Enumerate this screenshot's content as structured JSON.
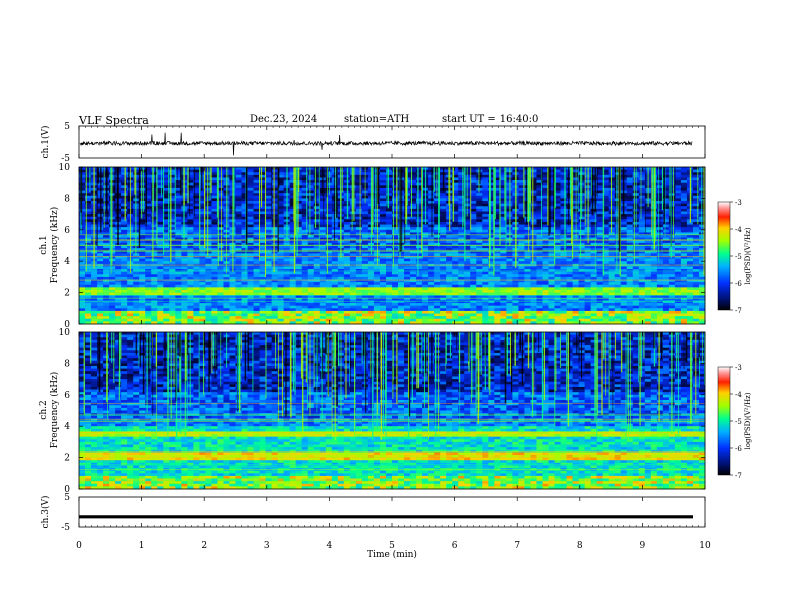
{
  "header": {
    "title": "VLF Spectra",
    "date": "Dec.23, 2024",
    "station": "station=ATH",
    "start_label": "start UT =",
    "start_time": "16:40:0"
  },
  "chart_data": [
    {
      "type": "line",
      "ylabel": "ch.1(V)",
      "ylim": [
        -5,
        5
      ],
      "yticks": [
        "5",
        "-5"
      ],
      "xlim": [
        0,
        10
      ],
      "series": [
        {
          "values_note_mean_v": -0.4,
          "noise_amplitude_v": 1.5
        }
      ]
    },
    {
      "type": "heatmap",
      "ylabel_channel": "ch.1",
      "ylabel": "Frequency (kHz)",
      "ylim": [
        0,
        10
      ],
      "yticks": [
        "0",
        "2",
        "4",
        "6",
        "8",
        "10"
      ],
      "xlim": [
        0,
        10
      ],
      "colorbar": {
        "label": "log(PSD)(V²/Hz)",
        "range": [
          -7,
          -3
        ],
        "ticks": [
          "-3",
          "-4",
          "-5",
          "-6",
          "-7"
        ]
      }
    },
    {
      "type": "heatmap",
      "ylabel_channel": "ch.2",
      "ylabel": "Frequency (kHz)",
      "ylim": [
        0,
        10
      ],
      "yticks": [
        "0",
        "2",
        "4",
        "6",
        "8",
        "10"
      ],
      "xlim": [
        0,
        10
      ],
      "colorbar": {
        "label": "log(PSD)(V²/Hz)",
        "range": [
          -7,
          -3
        ],
        "ticks": [
          "-3",
          "-4",
          "-5",
          "-6",
          "-7"
        ]
      }
    },
    {
      "type": "line",
      "ylabel": "ch.3(V)",
      "ylim": [
        -5,
        5
      ],
      "yticks": [
        "5",
        "-5"
      ],
      "xlim": [
        0,
        10
      ],
      "series": [
        {
          "constant_value_v": -1.6
        }
      ]
    }
  ],
  "x_axis": {
    "label": "Time (min)",
    "ticks": [
      "0",
      "1",
      "2",
      "3",
      "4",
      "5",
      "6",
      "7",
      "8",
      "9",
      "10"
    ]
  }
}
